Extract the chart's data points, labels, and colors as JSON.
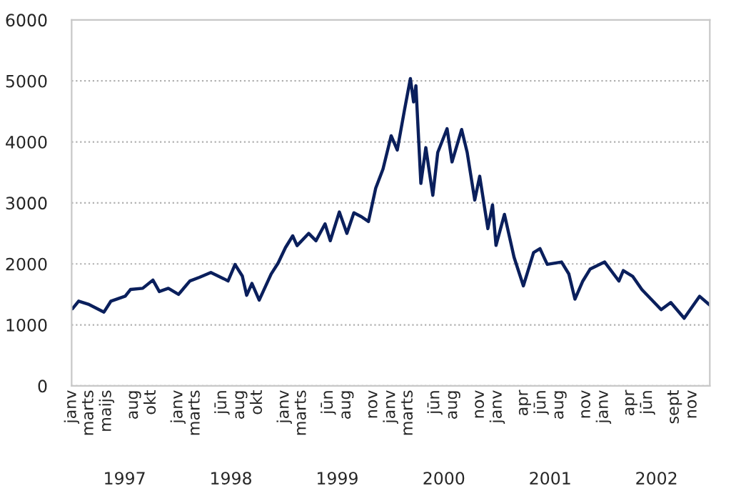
{
  "chart_data": {
    "type": "line",
    "x": [
      "1997-01-04",
      "1997-01-25",
      "1997-02-27",
      "1997-04-22",
      "1997-05-16",
      "1997-07-04",
      "1997-07-22",
      "1997-09-02",
      "1997-10-07",
      "1997-10-29",
      "1997-11-29",
      "1998-01-03",
      "1998-02-11",
      "1998-03-16",
      "1998-04-24",
      "1998-06-08",
      "1998-06-22",
      "1998-07-16",
      "1998-08-10",
      "1998-08-25",
      "1998-09-12",
      "1998-10-07",
      "1998-11-17",
      "1998-12-11",
      "1999-01-05",
      "1999-01-30",
      "1999-02-14",
      "1999-03-26",
      "1999-04-20",
      "1999-05-21",
      "1999-06-08",
      "1999-07-09",
      "1999-08-04",
      "1999-08-28",
      "1999-09-23",
      "1999-10-17",
      "1999-11-11",
      "1999-12-06",
      "2000-01-03",
      "2000-01-24",
      "2000-02-18",
      "2000-03-09",
      "2000-03-20",
      "2000-03-28",
      "2000-04-14",
      "2000-05-01",
      "2000-05-25",
      "2000-06-11",
      "2000-07-13",
      "2000-07-30",
      "2000-09-01",
      "2000-09-20",
      "2000-10-16",
      "2000-11-02",
      "2000-11-30",
      "2000-12-16",
      "2000-12-28",
      "2001-01-26",
      "2001-02-28",
      "2001-04-01",
      "2001-05-06",
      "2001-05-28",
      "2001-06-22",
      "2001-08-10",
      "2001-09-04",
      "2001-09-25",
      "2001-10-22",
      "2001-11-16",
      "2002-01-05",
      "2002-02-23",
      "2002-03-10",
      "2002-04-11",
      "2002-05-13",
      "2002-07-18",
      "2002-08-20",
      "2002-10-05",
      "2002-11-27",
      "2002-12-31"
    ],
    "series": [
      {
        "color": "#0a1f5c",
        "values": [
          1265,
          1390,
          1340,
          1210,
          1390,
          1470,
          1580,
          1600,
          1735,
          1547,
          1600,
          1500,
          1720,
          1780,
          1860,
          1755,
          1720,
          1990,
          1800,
          1485,
          1680,
          1406,
          1835,
          2015,
          2266,
          2460,
          2300,
          2500,
          2380,
          2656,
          2380,
          2851,
          2500,
          2838,
          2773,
          2695,
          3242,
          3555,
          4101,
          3867,
          4530,
          5039,
          4656,
          4922,
          3320,
          3906,
          3125,
          3828,
          4218,
          3672,
          4203,
          3828,
          3047,
          3437,
          2578,
          2968,
          2304,
          2812,
          2109,
          1640,
          2187,
          2250,
          1992,
          2031,
          1836,
          1422,
          1719,
          1914,
          2031,
          1719,
          1890,
          1797,
          1578,
          1250,
          1367,
          1109,
          1469,
          1328
        ]
      }
    ],
    "xlim": [
      "1997-01-01",
      "2003-01-01"
    ],
    "xticks": [
      {
        "value": "1997-01-01",
        "label": "janv"
      },
      {
        "value": "1997-03-01",
        "label": "marts"
      },
      {
        "value": "1997-05-01",
        "label": "maijs"
      },
      {
        "value": "1997-08-01",
        "label": "aug"
      },
      {
        "value": "1997-10-01",
        "label": "okt"
      },
      {
        "value": "1998-01-01",
        "label": "janv"
      },
      {
        "value": "1998-03-01",
        "label": "marts"
      },
      {
        "value": "1998-06-01",
        "label": "jūn"
      },
      {
        "value": "1998-08-01",
        "label": "aug"
      },
      {
        "value": "1998-10-01",
        "label": "okt"
      },
      {
        "value": "1999-01-01",
        "label": "janv"
      },
      {
        "value": "1999-03-01",
        "label": "marts"
      },
      {
        "value": "1999-06-01",
        "label": "jūn"
      },
      {
        "value": "1999-08-01",
        "label": "aug"
      },
      {
        "value": "1999-11-01",
        "label": "nov"
      },
      {
        "value": "2000-01-01",
        "label": "janv"
      },
      {
        "value": "2000-03-01",
        "label": "marts"
      },
      {
        "value": "2000-06-01",
        "label": "jūn"
      },
      {
        "value": "2000-08-01",
        "label": "aug"
      },
      {
        "value": "2000-11-01",
        "label": "nov"
      },
      {
        "value": "2001-01-01",
        "label": "janv"
      },
      {
        "value": "2001-04-01",
        "label": "apr"
      },
      {
        "value": "2001-06-01",
        "label": "jūn"
      },
      {
        "value": "2001-08-01",
        "label": "aug"
      },
      {
        "value": "2001-11-01",
        "label": "nov"
      },
      {
        "value": "2002-01-01",
        "label": "janv"
      },
      {
        "value": "2002-04-01",
        "label": "apr"
      },
      {
        "value": "2002-06-01",
        "label": "jūn"
      },
      {
        "value": "2002-09-01",
        "label": "sept"
      },
      {
        "value": "2002-11-01",
        "label": "nov"
      }
    ],
    "x2lim": [
      "1997-01-01",
      "2003-01-01"
    ],
    "x2ticks": [
      {
        "value": "1997-07-02",
        "label": "1997"
      },
      {
        "value": "1998-07-02",
        "label": "1998"
      },
      {
        "value": "1999-07-02",
        "label": "1999"
      },
      {
        "value": "2000-07-02",
        "label": "2000"
      },
      {
        "value": "2001-07-02",
        "label": "2001"
      },
      {
        "value": "2002-07-02",
        "label": "2002"
      }
    ],
    "ylim": [
      0,
      6000
    ],
    "yticks": [
      0,
      1000,
      2000,
      3000,
      4000,
      5000,
      6000
    ],
    "grid": "y",
    "line_style": "solid"
  }
}
